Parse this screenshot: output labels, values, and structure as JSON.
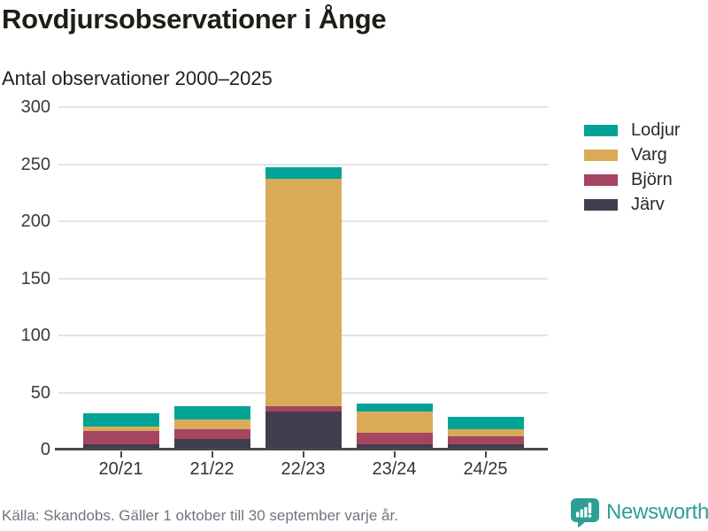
{
  "header": {
    "title": "Rovdjursobservationer i Ånge",
    "subtitle": "Antal observationer 2000–2025"
  },
  "chart_data": {
    "type": "bar",
    "stacked": true,
    "title": "Rovdjursobservationer i Ånge",
    "subtitle": "Antal observationer 2000–2025",
    "categories": [
      "20/21",
      "21/22",
      "22/23",
      "23/24",
      "24/25"
    ],
    "series": [
      {
        "name": "Järv",
        "color": "#413e4e",
        "values": [
          5,
          9,
          33,
          5,
          5
        ]
      },
      {
        "name": "Björn",
        "color": "#a54560",
        "values": [
          11,
          9,
          5,
          10,
          7
        ]
      },
      {
        "name": "Varg",
        "color": "#d9ab59",
        "values": [
          4,
          8,
          199,
          18,
          6
        ]
      },
      {
        "name": "Lodjur",
        "color": "#00a396",
        "values": [
          12,
          12,
          10,
          7,
          11
        ]
      }
    ],
    "stack_order": "bottom-to-top",
    "totals": [
      32,
      38,
      247,
      40,
      29
    ],
    "legend_order": [
      "Lodjur",
      "Varg",
      "Björn",
      "Järv"
    ],
    "legend_position": "right",
    "ylim": [
      0,
      300
    ],
    "yticks": [
      0,
      50,
      100,
      150,
      200,
      250,
      300
    ],
    "grid": true,
    "axis_color": "#4a4751",
    "gridline_color": "#e3e3e3"
  },
  "footer": {
    "source": "Källa: Skandobs. Gäller 1 oktober till 30 september varje år."
  },
  "branding": {
    "name": "Newsworthy",
    "color": "#2f9e95",
    "icon": "bar-chart-speech-bubble-icon"
  }
}
